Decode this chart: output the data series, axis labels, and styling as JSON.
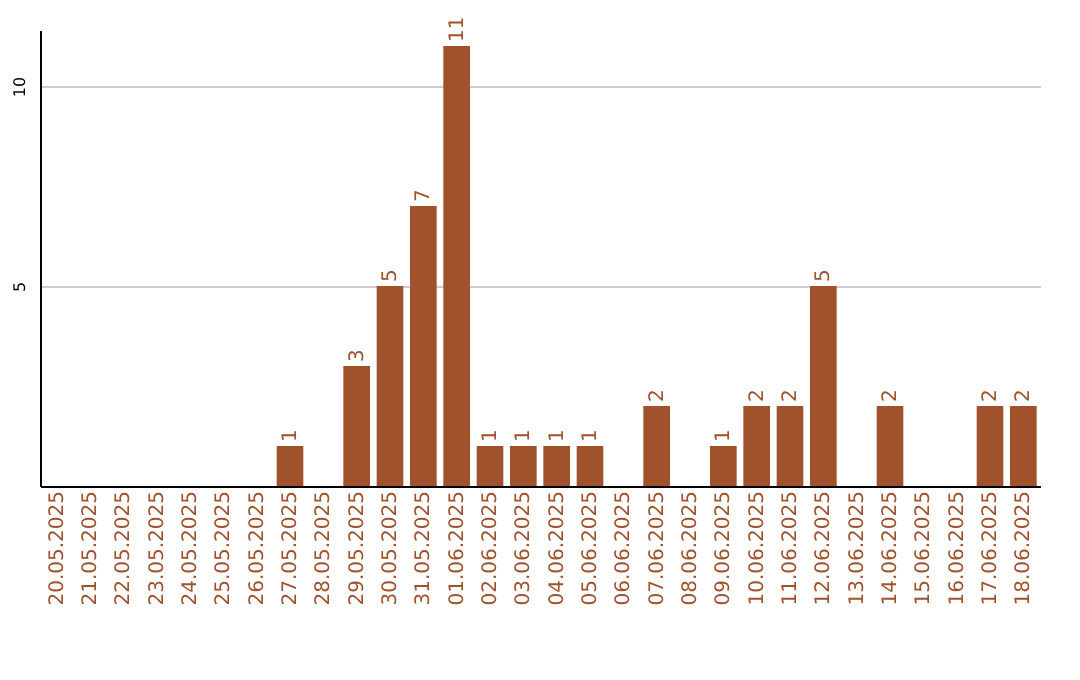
{
  "chart_data": {
    "type": "bar",
    "categories": [
      "20.05.2025",
      "21.05.2025",
      "22.05.2025",
      "23.05.2025",
      "24.05.2025",
      "25.05.2025",
      "26.05.2025",
      "27.05.2025",
      "28.05.2025",
      "29.05.2025",
      "30.05.2025",
      "31.05.2025",
      "01.06.2025",
      "02.06.2025",
      "03.06.2025",
      "04.06.2025",
      "05.06.2025",
      "06.06.2025",
      "07.06.2025",
      "08.06.2025",
      "09.06.2025",
      "10.06.2025",
      "11.06.2025",
      "12.06.2025",
      "13.06.2025",
      "14.06.2025",
      "15.06.2025",
      "16.06.2025",
      "17.06.2025",
      "18.06.2025"
    ],
    "values": [
      0,
      0,
      0,
      0,
      0,
      0,
      0,
      1,
      0,
      3,
      5,
      7,
      11,
      1,
      1,
      1,
      1,
      0,
      2,
      0,
      1,
      2,
      2,
      5,
      0,
      2,
      0,
      0,
      2,
      2
    ],
    "value_labels": [
      null,
      null,
      null,
      null,
      null,
      null,
      null,
      "1",
      null,
      "3",
      "5",
      "7",
      "11",
      "1",
      "1",
      "1",
      "1",
      null,
      "2",
      null,
      "1",
      "2",
      "2",
      "5",
      null,
      "2",
      null,
      null,
      "2",
      "2"
    ],
    "color": "#a0522d",
    "ylim": [
      0,
      11.4
    ],
    "yticks": [
      {
        "value": 0,
        "label": null
      },
      5,
      10
    ],
    "grid": "y"
  }
}
